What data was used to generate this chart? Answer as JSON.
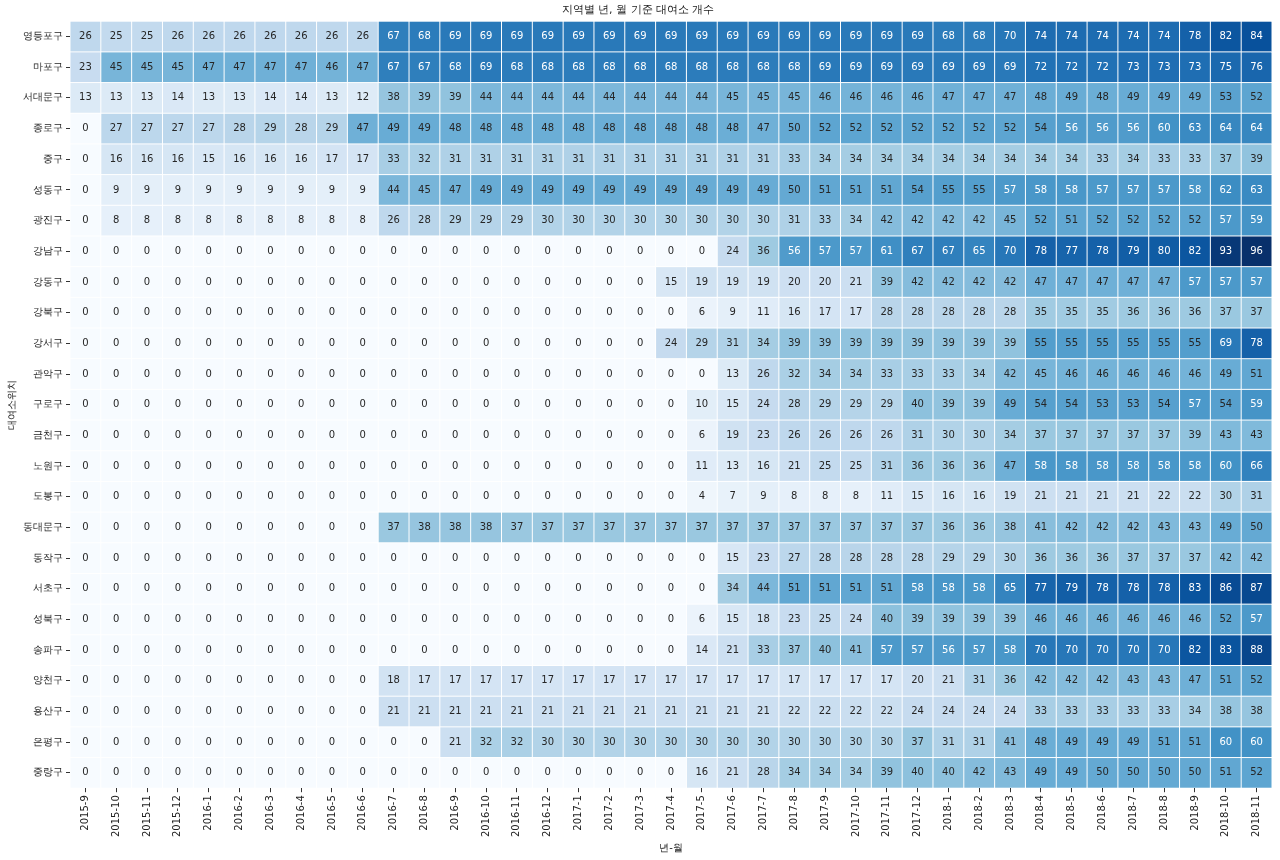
{
  "chart_data": {
    "type": "heatmap",
    "title": "지역별 년, 월 기준 대여소 개수",
    "xlabel": "년-월",
    "ylabel": "대여소위치",
    "data_labels": true,
    "categories": [
      "2015-9",
      "2015-10",
      "2015-11",
      "2015-12",
      "2016-1",
      "2016-2",
      "2016-3",
      "2016-4",
      "2016-5",
      "2016-6",
      "2016-7",
      "2016-8",
      "2016-9",
      "2016-10",
      "2016-11",
      "2016-12",
      "2017-1",
      "2017-2",
      "2017-3",
      "2017-4",
      "2017-5",
      "2017-6",
      "2017-7",
      "2017-8",
      "2017-9",
      "2017-10",
      "2017-11",
      "2017-12",
      "2018-1",
      "2018-2",
      "2018-3",
      "2018-4",
      "2018-5",
      "2018-6",
      "2018-7",
      "2018-8",
      "2018-9",
      "2018-10",
      "2018-11"
    ],
    "y_categories": [
      "영등포구",
      "마포구",
      "서대문구",
      "종로구",
      "중구",
      "성동구",
      "광진구",
      "강남구",
      "강동구",
      "강북구",
      "강서구",
      "관악구",
      "구로구",
      "금천구",
      "노원구",
      "도봉구",
      "동대문구",
      "동작구",
      "서초구",
      "성북구",
      "송파구",
      "양천구",
      "용산구",
      "은평구",
      "중랑구"
    ],
    "cells": [
      [
        26,
        25,
        25,
        26,
        26,
        26,
        26,
        26,
        26,
        26,
        67,
        68,
        69,
        69,
        69,
        69,
        69,
        69,
        69,
        69,
        69,
        69,
        69,
        69,
        69,
        69,
        69,
        69,
        68,
        68,
        70,
        74,
        74,
        74,
        74,
        74,
        78,
        82,
        84
      ],
      [
        23,
        45,
        45,
        45,
        47,
        47,
        47,
        47,
        46,
        47,
        67,
        67,
        68,
        69,
        68,
        68,
        68,
        68,
        68,
        68,
        68,
        68,
        68,
        68,
        69,
        69,
        69,
        69,
        69,
        69,
        69,
        72,
        72,
        72,
        73,
        73,
        73,
        75,
        76
      ],
      [
        13,
        13,
        13,
        14,
        13,
        13,
        14,
        14,
        13,
        12,
        38,
        39,
        39,
        44,
        44,
        44,
        44,
        44,
        44,
        44,
        44,
        45,
        45,
        45,
        46,
        46,
        46,
        46,
        47,
        47,
        47,
        48,
        49,
        48,
        49,
        49,
        49,
        53,
        52
      ],
      [
        0,
        27,
        27,
        27,
        27,
        28,
        29,
        28,
        29,
        47,
        49,
        49,
        48,
        48,
        48,
        48,
        48,
        48,
        48,
        48,
        48,
        48,
        47,
        50,
        52,
        52,
        52,
        52,
        52,
        52,
        52,
        54,
        56,
        56,
        56,
        60,
        63,
        64,
        64
      ],
      [
        0,
        16,
        16,
        16,
        15,
        16,
        16,
        16,
        17,
        17,
        33,
        32,
        31,
        31,
        31,
        31,
        31,
        31,
        31,
        31,
        31,
        31,
        31,
        33,
        34,
        34,
        34,
        34,
        34,
        34,
        34,
        34,
        34,
        33,
        34,
        33,
        33,
        37,
        39
      ],
      [
        0,
        9,
        9,
        9,
        9,
        9,
        9,
        9,
        9,
        9,
        44,
        45,
        47,
        49,
        49,
        49,
        49,
        49,
        49,
        49,
        49,
        49,
        49,
        50,
        51,
        51,
        51,
        54,
        55,
        55,
        57,
        58,
        58,
        57,
        57,
        57,
        58,
        62,
        63
      ],
      [
        0,
        8,
        8,
        8,
        8,
        8,
        8,
        8,
        8,
        8,
        26,
        28,
        29,
        29,
        29,
        30,
        30,
        30,
        30,
        30,
        30,
        30,
        30,
        31,
        33,
        34,
        42,
        42,
        42,
        42,
        45,
        52,
        51,
        52,
        52,
        52,
        52,
        57,
        59
      ],
      [
        0,
        0,
        0,
        0,
        0,
        0,
        0,
        0,
        0,
        0,
        0,
        0,
        0,
        0,
        0,
        0,
        0,
        0,
        0,
        0,
        0,
        24,
        36,
        56,
        57,
        57,
        61,
        67,
        67,
        65,
        70,
        78,
        77,
        78,
        79,
        80,
        82,
        93,
        96
      ],
      [
        0,
        0,
        0,
        0,
        0,
        0,
        0,
        0,
        0,
        0,
        0,
        0,
        0,
        0,
        0,
        0,
        0,
        0,
        0,
        15,
        19,
        19,
        19,
        20,
        20,
        21,
        39,
        42,
        42,
        42,
        42,
        47,
        47,
        47,
        47,
        47,
        57,
        57,
        57
      ],
      [
        0,
        0,
        0,
        0,
        0,
        0,
        0,
        0,
        0,
        0,
        0,
        0,
        0,
        0,
        0,
        0,
        0,
        0,
        0,
        0,
        6,
        9,
        11,
        16,
        17,
        17,
        28,
        28,
        28,
        28,
        28,
        35,
        35,
        35,
        36,
        36,
        36,
        37,
        37
      ],
      [
        0,
        0,
        0,
        0,
        0,
        0,
        0,
        0,
        0,
        0,
        0,
        0,
        0,
        0,
        0,
        0,
        0,
        0,
        0,
        24,
        29,
        31,
        34,
        39,
        39,
        39,
        39,
        39,
        39,
        39,
        39,
        55,
        55,
        55,
        55,
        55,
        55,
        69,
        78
      ],
      [
        0,
        0,
        0,
        0,
        0,
        0,
        0,
        0,
        0,
        0,
        0,
        0,
        0,
        0,
        0,
        0,
        0,
        0,
        0,
        0,
        0,
        13,
        26,
        32,
        34,
        34,
        33,
        33,
        33,
        34,
        42,
        45,
        46,
        46,
        46,
        46,
        46,
        49,
        51
      ],
      [
        0,
        0,
        0,
        0,
        0,
        0,
        0,
        0,
        0,
        0,
        0,
        0,
        0,
        0,
        0,
        0,
        0,
        0,
        0,
        0,
        10,
        15,
        24,
        28,
        29,
        29,
        29,
        40,
        39,
        39,
        49,
        54,
        54,
        53,
        53,
        54,
        57,
        54,
        59
      ],
      [
        0,
        0,
        0,
        0,
        0,
        0,
        0,
        0,
        0,
        0,
        0,
        0,
        0,
        0,
        0,
        0,
        0,
        0,
        0,
        0,
        6,
        19,
        23,
        26,
        26,
        26,
        26,
        31,
        30,
        30,
        34,
        37,
        37,
        37,
        37,
        37,
        39,
        43,
        43
      ],
      [
        0,
        0,
        0,
        0,
        0,
        0,
        0,
        0,
        0,
        0,
        0,
        0,
        0,
        0,
        0,
        0,
        0,
        0,
        0,
        0,
        11,
        13,
        16,
        21,
        25,
        25,
        31,
        36,
        36,
        36,
        47,
        58,
        58,
        58,
        58,
        58,
        58,
        60,
        66
      ],
      [
        0,
        0,
        0,
        0,
        0,
        0,
        0,
        0,
        0,
        0,
        0,
        0,
        0,
        0,
        0,
        0,
        0,
        0,
        0,
        0,
        4,
        7,
        9,
        8,
        8,
        8,
        11,
        15,
        16,
        16,
        19,
        21,
        21,
        21,
        21,
        22,
        22,
        30,
        31
      ],
      [
        0,
        0,
        0,
        0,
        0,
        0,
        0,
        0,
        0,
        0,
        37,
        38,
        38,
        38,
        37,
        37,
        37,
        37,
        37,
        37,
        37,
        37,
        37,
        37,
        37,
        37,
        37,
        37,
        36,
        36,
        38,
        41,
        42,
        42,
        42,
        43,
        43,
        49,
        50
      ],
      [
        0,
        0,
        0,
        0,
        0,
        0,
        0,
        0,
        0,
        0,
        0,
        0,
        0,
        0,
        0,
        0,
        0,
        0,
        0,
        0,
        0,
        15,
        23,
        27,
        28,
        28,
        28,
        28,
        29,
        29,
        30,
        36,
        36,
        36,
        37,
        37,
        37,
        42,
        42
      ],
      [
        0,
        0,
        0,
        0,
        0,
        0,
        0,
        0,
        0,
        0,
        0,
        0,
        0,
        0,
        0,
        0,
        0,
        0,
        0,
        0,
        0,
        34,
        44,
        51,
        51,
        51,
        51,
        58,
        58,
        58,
        65,
        77,
        79,
        78,
        78,
        78,
        83,
        86,
        87
      ],
      [
        0,
        0,
        0,
        0,
        0,
        0,
        0,
        0,
        0,
        0,
        0,
        0,
        0,
        0,
        0,
        0,
        0,
        0,
        0,
        0,
        6,
        15,
        18,
        23,
        25,
        24,
        40,
        39,
        39,
        39,
        39,
        46,
        46,
        46,
        46,
        46,
        46,
        52,
        57
      ],
      [
        0,
        0,
        0,
        0,
        0,
        0,
        0,
        0,
        0,
        0,
        0,
        0,
        0,
        0,
        0,
        0,
        0,
        0,
        0,
        0,
        14,
        21,
        33,
        37,
        40,
        41,
        57,
        57,
        56,
        57,
        58,
        70,
        70,
        70,
        70,
        70,
        82,
        83,
        88
      ],
      [
        0,
        0,
        0,
        0,
        0,
        0,
        0,
        0,
        0,
        0,
        18,
        17,
        17,
        17,
        17,
        17,
        17,
        17,
        17,
        17,
        17,
        17,
        17,
        17,
        17,
        17,
        17,
        20,
        21,
        31,
        36,
        42,
        42,
        42,
        43,
        43,
        47,
        51,
        52
      ],
      [
        0,
        0,
        0,
        0,
        0,
        0,
        0,
        0,
        0,
        0,
        21,
        21,
        21,
        21,
        21,
        21,
        21,
        21,
        21,
        21,
        21,
        21,
        21,
        22,
        22,
        22,
        22,
        24,
        24,
        24,
        24,
        33,
        33,
        33,
        33,
        33,
        34,
        38,
        38
      ],
      [
        0,
        0,
        0,
        0,
        0,
        0,
        0,
        0,
        0,
        0,
        0,
        0,
        21,
        32,
        32,
        30,
        30,
        30,
        30,
        30,
        30,
        30,
        30,
        30,
        30,
        30,
        30,
        37,
        31,
        31,
        41,
        48,
        49,
        49,
        49,
        51,
        51,
        60,
        60
      ],
      [
        0,
        0,
        0,
        0,
        0,
        0,
        0,
        0,
        0,
        0,
        0,
        0,
        0,
        0,
        0,
        0,
        0,
        0,
        0,
        0,
        16,
        21,
        28,
        34,
        34,
        34,
        39,
        40,
        40,
        42,
        43,
        49,
        49,
        50,
        50,
        50,
        50,
        51,
        52
      ]
    ]
  }
}
